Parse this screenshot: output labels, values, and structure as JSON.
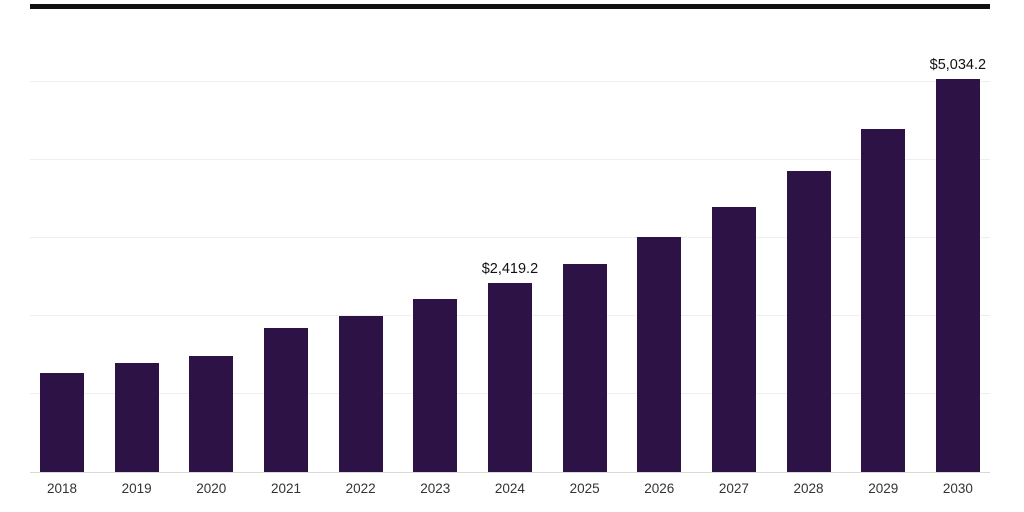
{
  "chart_data": {
    "type": "bar",
    "title": "",
    "xlabel": "",
    "ylabel": "",
    "categories": [
      "2018",
      "2019",
      "2020",
      "2021",
      "2022",
      "2023",
      "2024",
      "2025",
      "2026",
      "2027",
      "2028",
      "2029",
      "2030"
    ],
    "values": [
      1270,
      1400,
      1490,
      1845,
      2000,
      2215,
      2419.2,
      2670,
      3015,
      3395,
      3865,
      4400,
      5034.2
    ],
    "data_labels": [
      {
        "category": "2024",
        "text": "$2,419.2"
      },
      {
        "category": "2030",
        "text": "$5,034.2"
      }
    ],
    "ylim": [
      0,
      6000
    ],
    "gridline_values": [
      1000,
      2000,
      3000,
      4000,
      5000
    ],
    "grid_on": true,
    "legend_position": "none",
    "bar_color": "#2d1345",
    "gridline_color": "#efefef",
    "axis_line_color": "#d9d9d9",
    "top_border_color": "#111111",
    "label_color": "#111111",
    "tick_label_color": "#333333"
  }
}
